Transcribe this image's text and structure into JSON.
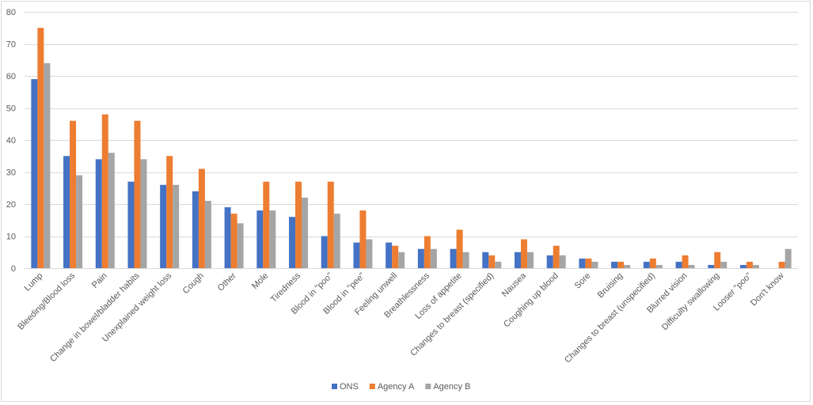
{
  "chart_data": {
    "type": "bar",
    "ylim": [
      0,
      80
    ],
    "yticks": [
      0,
      10,
      20,
      30,
      40,
      50,
      60,
      70,
      80
    ],
    "grid": true,
    "legend_position": "bottom",
    "categories": [
      "Lump",
      "Bleeding/Blood loss",
      "Pain",
      "Change in bowel/bladder habits",
      "Unexplained weight loss",
      "Cough",
      "Other",
      "Mole",
      "Tiredness",
      "Blood in \"poo\"",
      "Blood in \"pee\"",
      "Feeling unwell",
      "Breathlessness",
      "Loss of appetite",
      "Changes to breast (specified)",
      "Nausea",
      "Coughing up blood",
      "Sore",
      "Bruising",
      "Changes to breast (unspecified)",
      "Blurred vision",
      "Difficulty swallowing",
      "Looser \"poo\"",
      "Don't know"
    ],
    "series": [
      {
        "name": "ONS",
        "color": "#4472c4",
        "values": [
          59,
          35,
          34,
          27,
          26,
          24,
          19,
          18,
          16,
          10,
          8,
          8,
          6,
          6,
          5,
          5,
          4,
          3,
          2,
          2,
          2,
          1,
          1,
          0
        ]
      },
      {
        "name": "Agency A",
        "color": "#ed7d31",
        "values": [
          75,
          46,
          48,
          46,
          35,
          31,
          17,
          27,
          27,
          27,
          18,
          7,
          10,
          12,
          4,
          9,
          7,
          3,
          2,
          3,
          4,
          5,
          2,
          2
        ]
      },
      {
        "name": "Agency B",
        "color": "#a5a5a5",
        "values": [
          64,
          29,
          36,
          34,
          26,
          21,
          14,
          18,
          22,
          17,
          9,
          5,
          6,
          5,
          2,
          5,
          4,
          2,
          1,
          1,
          1,
          2,
          1,
          6
        ]
      }
    ]
  }
}
